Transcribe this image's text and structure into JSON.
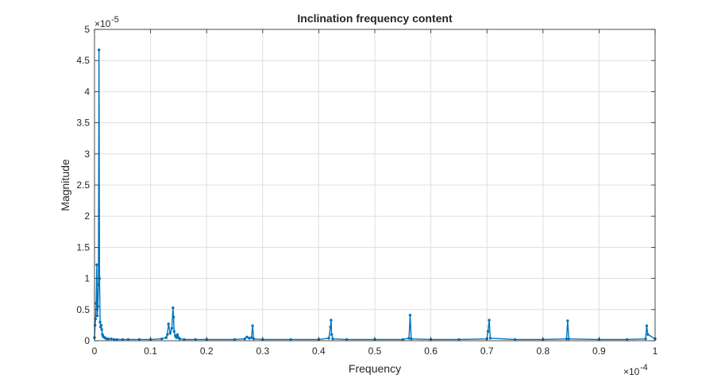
{
  "figure": {
    "title": "Inclination frequency content",
    "xlabel": "Frequency",
    "ylabel": "Magnitude",
    "x_exponent": "-4",
    "y_exponent": "-5",
    "exponent_prefix": "×10"
  },
  "chart_data": {
    "type": "line",
    "title": "Inclination frequency content",
    "xlabel": "Frequency",
    "ylabel": "Magnitude",
    "x_scale_factor": 0.0001,
    "y_scale_factor": 1e-05,
    "xlim": [
      0,
      1
    ],
    "ylim": [
      0,
      5
    ],
    "x_ticks": [
      "0",
      "0.1",
      "0.2",
      "0.3",
      "0.4",
      "0.5",
      "0.6",
      "0.7",
      "0.8",
      "0.9",
      "1"
    ],
    "y_ticks": [
      "0",
      "0.5",
      "1",
      "1.5",
      "2",
      "2.5",
      "3",
      "3.5",
      "4",
      "4.5",
      "5"
    ],
    "grid": true,
    "marker": "dot",
    "color": "#0072BD",
    "series": [
      {
        "x": [
          0.0,
          0.001,
          0.002,
          0.003,
          0.004,
          0.005,
          0.006,
          0.007,
          0.008,
          0.009,
          0.01,
          0.011,
          0.012,
          0.013,
          0.014,
          0.015,
          0.016,
          0.018,
          0.02,
          0.022,
          0.025,
          0.03,
          0.035,
          0.04,
          0.05,
          0.06,
          0.08,
          0.1,
          0.12,
          0.128,
          0.13,
          0.132,
          0.135,
          0.138,
          0.14,
          0.141,
          0.142,
          0.144,
          0.146,
          0.148,
          0.15,
          0.152,
          0.16,
          0.18,
          0.2,
          0.25,
          0.268,
          0.272,
          0.276,
          0.28,
          0.282,
          0.284,
          0.3,
          0.35,
          0.4,
          0.418,
          0.421,
          0.422,
          0.423,
          0.425,
          0.45,
          0.5,
          0.55,
          0.561,
          0.563,
          0.565,
          0.6,
          0.65,
          0.7,
          0.702,
          0.704,
          0.706,
          0.75,
          0.8,
          0.842,
          0.844,
          0.846,
          0.9,
          0.95,
          0.983,
          0.985,
          0.987,
          1.0
        ],
        "y": [
          0.05,
          0.25,
          0.35,
          0.6,
          1.22,
          0.4,
          0.55,
          0.9,
          4.67,
          1.0,
          0.3,
          0.22,
          0.25,
          0.18,
          0.1,
          0.08,
          0.06,
          0.05,
          0.04,
          0.03,
          0.03,
          0.03,
          0.02,
          0.02,
          0.02,
          0.02,
          0.02,
          0.02,
          0.03,
          0.05,
          0.1,
          0.27,
          0.12,
          0.2,
          0.53,
          0.38,
          0.15,
          0.08,
          0.05,
          0.1,
          0.05,
          0.03,
          0.02,
          0.02,
          0.02,
          0.02,
          0.03,
          0.06,
          0.04,
          0.05,
          0.24,
          0.03,
          0.02,
          0.02,
          0.02,
          0.04,
          0.22,
          0.33,
          0.1,
          0.03,
          0.02,
          0.02,
          0.02,
          0.04,
          0.41,
          0.03,
          0.02,
          0.02,
          0.03,
          0.15,
          0.33,
          0.04,
          0.02,
          0.02,
          0.03,
          0.32,
          0.03,
          0.02,
          0.02,
          0.03,
          0.24,
          0.1,
          0.03
        ]
      }
    ]
  }
}
